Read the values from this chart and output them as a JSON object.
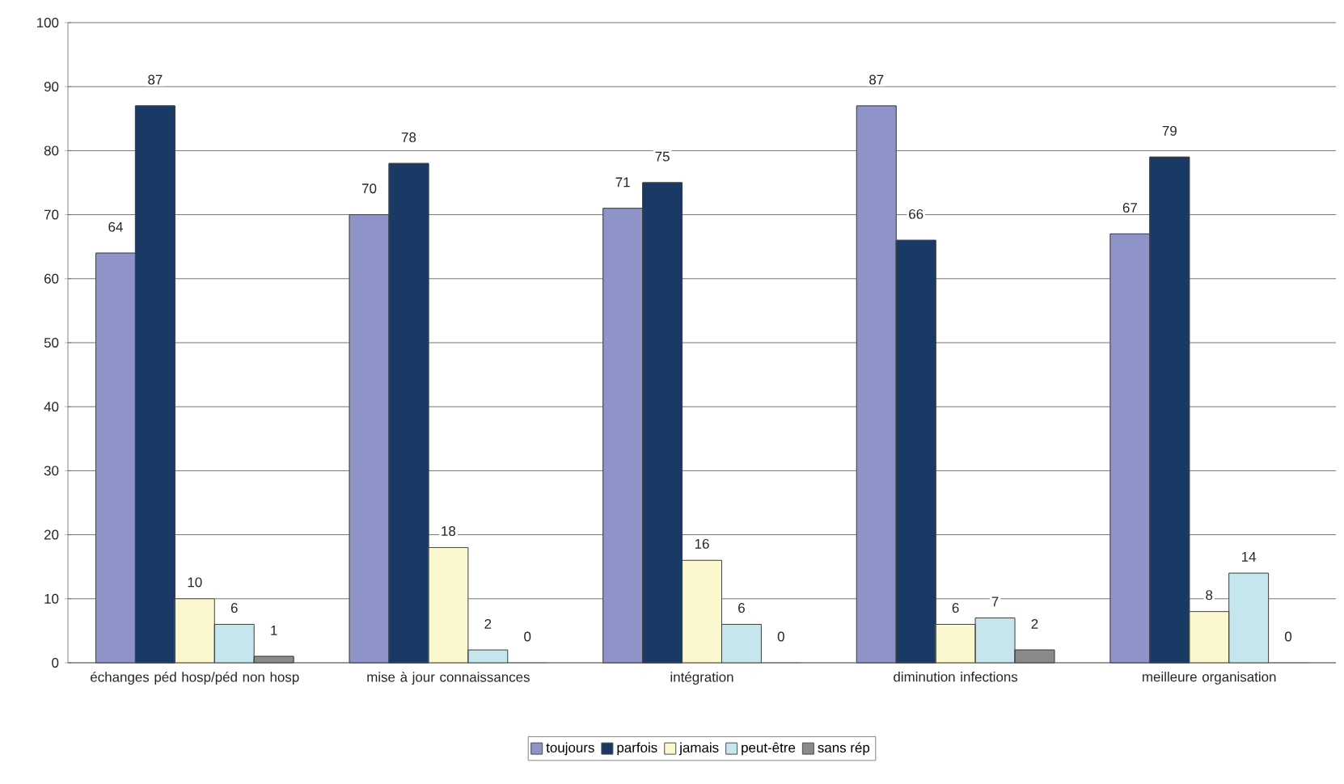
{
  "chart_data": {
    "type": "bar",
    "categories": [
      "échanges péd hosp/péd non hosp",
      "mise à jour connaissances",
      "intégration",
      "diminution infections",
      "meilleure organisation"
    ],
    "series": [
      {
        "name": "toujours",
        "color": "#8f94c8",
        "values": [
          64,
          70,
          71,
          87,
          67
        ]
      },
      {
        "name": "parfois",
        "color": "#1a3a66",
        "values": [
          87,
          78,
          75,
          66,
          79
        ]
      },
      {
        "name": "jamais",
        "color": "#fbf7cf",
        "values": [
          10,
          18,
          16,
          6,
          8
        ]
      },
      {
        "name": "peut-être",
        "color": "#c6e6ee",
        "values": [
          6,
          2,
          6,
          7,
          14
        ]
      },
      {
        "name": "sans rép",
        "color": "#8a8a8a",
        "values": [
          1,
          0,
          0,
          2,
          0
        ]
      }
    ],
    "ylim": [
      0,
      100
    ],
    "yticks": [
      0,
      10,
      20,
      30,
      40,
      50,
      60,
      70,
      80,
      90,
      100
    ],
    "grid": "y",
    "legend": "bottom",
    "data_labels": true
  }
}
